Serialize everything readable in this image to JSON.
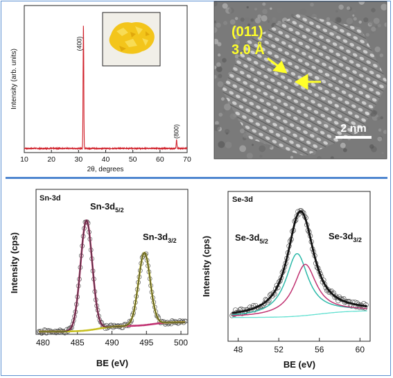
{
  "chart_data": [
    {
      "type": "line",
      "panel": "xrd",
      "xlabel": "2θ, degrees",
      "ylabel": "Intensity (arb. units)",
      "xlim": [
        10,
        70
      ],
      "xticks": [
        10,
        20,
        30,
        40,
        50,
        60,
        70
      ],
      "series": [
        {
          "color": "#d0202a",
          "peaks": [
            {
              "x": 31.8,
              "height": 1.0,
              "label": "(400)"
            },
            {
              "x": 66.1,
              "height": 0.07,
              "label": "(800)"
            }
          ]
        }
      ],
      "inset": "yellow powder photograph"
    },
    {
      "type": "image",
      "panel": "hrtem",
      "annotations": [
        {
          "text": "(011)"
        },
        {
          "text": "3.0 Å"
        }
      ],
      "scale_bar": "2 nm"
    },
    {
      "type": "line",
      "panel": "sn3d",
      "title": "Sn-3d",
      "xlabel": "BE (eV)",
      "ylabel": "Intensity (cps)",
      "xlim": [
        479,
        501
      ],
      "xticks": [
        480,
        485,
        490,
        495,
        500
      ],
      "peaks": [
        {
          "label": "Sn-3d",
          "sub": "5/2",
          "center": 486.3,
          "color": "#c03070",
          "amplitude": 0.88
        },
        {
          "label": "Sn-3d",
          "sub": "3/2",
          "center": 494.7,
          "color": "#c8c020",
          "amplitude": 0.58
        }
      ],
      "background_color": "#e0e020",
      "envelope_color": "#333333"
    },
    {
      "type": "line",
      "panel": "se3d",
      "title": "Se-3d",
      "xlabel": "BE (eV)",
      "ylabel": "Intensity (cps)",
      "xlim": [
        47,
        61
      ],
      "xticks": [
        48,
        52,
        56,
        60
      ],
      "peaks": [
        {
          "label": "Se-3d",
          "sub": "5/2",
          "center": 53.8,
          "color": "#2bb8a8",
          "amplitude": 0.55
        },
        {
          "label": "Se-3d",
          "sub": "3/2",
          "center": 54.6,
          "color": "#c03070",
          "amplitude": 0.45
        }
      ],
      "background_color": "#60e0d0",
      "envelope_color": "#111111"
    }
  ]
}
